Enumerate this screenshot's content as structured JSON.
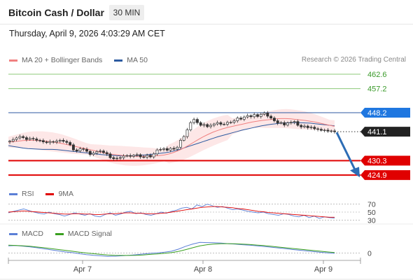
{
  "header": {
    "title": "Bitcoin Cash / Dollar",
    "timeframe": "30 MIN",
    "datetime": "Thursday, April 9, 2026 4:03:29 AM CET"
  },
  "legends": {
    "main": [
      {
        "label": "MA 20 + Bollinger Bands",
        "color": "#f08080"
      },
      {
        "label": "MA 50",
        "color": "#2c5aa0"
      }
    ],
    "rsi": [
      {
        "label": "RSI",
        "color": "#5b7fd6"
      },
      {
        "label": "9MA",
        "color": "#e00000"
      }
    ],
    "macd": [
      {
        "label": "MACD",
        "color": "#5b7fd6"
      },
      {
        "label": "MACD Signal",
        "color": "#3aa020"
      }
    ]
  },
  "credit": "Research © 2026 Trading Central",
  "colors": {
    "resistance": "#8cc878",
    "pivot": "#2c5aa0",
    "support": "#e00000",
    "tag_pivot": "#1f77e0",
    "tag_current": "#222222",
    "tag_support": "#e00000",
    "arrow": "#2d6db5",
    "candle_up": "#2ca02c",
    "candle_down": "#d62728"
  },
  "chart_data": {
    "type": "candlestick",
    "timeframe": "30 MIN",
    "x_ticks": [
      "Apr 7",
      "Apr 8",
      "Apr 9"
    ],
    "ylim": [
      421,
      466
    ],
    "levels": [
      {
        "value": 462.6,
        "label": "462.6",
        "kind": "resistance"
      },
      {
        "value": 457.2,
        "label": "457.2",
        "kind": "resistance"
      },
      {
        "value": 448.2,
        "label": "448.2",
        "kind": "pivot"
      },
      {
        "value": 441.1,
        "label": "441.1",
        "kind": "current"
      },
      {
        "value": 430.3,
        "label": "430.3",
        "kind": "support"
      },
      {
        "value": 424.9,
        "label": "424.9",
        "kind": "support"
      }
    ],
    "close": [
      437.6,
      438.2,
      438.8,
      439.3,
      438.9,
      438.2,
      438.6,
      438.4,
      437.9,
      437.8,
      437.3,
      437.0,
      437.4,
      437.2,
      437.6,
      437.9,
      437.5,
      437.1,
      436.2,
      434.3,
      433.9,
      434.7,
      434.5,
      433.8,
      432.6,
      433.1,
      433.7,
      433.9,
      433.3,
      432.8,
      431.4,
      431.0,
      431.2,
      431.4,
      432.0,
      432.2,
      431.9,
      432.3,
      432.5,
      431.7,
      431.6,
      432.3,
      431.7,
      432.8,
      434.3,
      434.5,
      434.8,
      434.2,
      434.9,
      434.6,
      435.3,
      437.9,
      439.3,
      441.8,
      444.5,
      445.7,
      444.5,
      443.5,
      443.8,
      443.0,
      443.5,
      444.0,
      444.5,
      443.9,
      443.9,
      444.6,
      444.6,
      445.2,
      446.2,
      445.8,
      446.6,
      447.1,
      446.7,
      447.5,
      446.8,
      447.6,
      448.1,
      446.9,
      446.2,
      445.2,
      444.3,
      444.5,
      443.6,
      444.4,
      444.6,
      444.9,
      443.5,
      442.9,
      443.2,
      442.6,
      442.8,
      442.2,
      442.0,
      441.6,
      441.7,
      441.3,
      441.4,
      441.1
    ],
    "ma20": [
      437.2,
      437.4,
      437.6,
      437.8,
      437.9,
      437.9,
      437.8,
      437.7,
      437.5,
      437.3,
      437.0,
      436.7,
      436.3,
      435.9,
      435.5,
      435.1,
      434.7,
      434.3,
      433.9,
      433.5,
      433.1,
      432.7,
      432.5,
      432.3,
      432.1,
      432.0,
      431.9,
      431.9,
      431.9,
      432.0,
      432.1,
      432.2,
      432.4,
      432.8,
      433.4,
      434.1,
      435.0,
      436.0,
      437.1,
      438.2,
      439.2,
      440.1,
      440.9,
      441.6,
      442.2,
      442.7,
      443.1,
      443.5,
      443.9,
      444.3,
      444.7,
      445.0,
      445.3,
      445.5,
      445.7,
      445.9,
      446.0,
      446.0,
      445.9,
      445.7,
      445.5,
      445.3,
      445.0,
      444.7,
      444.3,
      443.9,
      443.5,
      443.1
    ],
    "ma50": [
      435.9,
      435.6,
      435.3,
      435.0,
      434.8,
      434.7,
      434.6,
      434.5,
      434.5,
      434.5,
      434.4,
      434.2,
      434.0,
      433.8,
      433.6,
      433.4,
      433.2,
      433.0,
      432.8,
      432.6,
      432.4,
      432.3,
      432.2,
      432.1,
      432.1,
      432.1,
      432.2,
      432.3,
      432.4,
      432.6,
      432.8,
      433.0,
      433.2,
      433.5,
      433.9,
      434.4,
      435.0,
      435.6,
      436.2,
      436.8,
      437.4,
      438.0,
      438.6,
      439.2,
      439.7,
      440.2,
      440.7,
      441.2,
      441.7,
      442.1,
      442.5,
      442.9,
      443.3,
      443.6,
      443.9,
      444.1,
      444.3,
      444.4,
      444.5,
      444.5,
      444.5,
      444.4,
      444.3,
      444.1,
      443.9,
      443.7,
      443.5,
      443.3
    ],
    "rsi": {
      "ticks": [
        70,
        50,
        30
      ],
      "ylim": [
        27,
        73
      ],
      "rsi": [
        48,
        52,
        55,
        58,
        54,
        50,
        47,
        45,
        50,
        46,
        44,
        40,
        44,
        48,
        45,
        42,
        46,
        40,
        38,
        44,
        48,
        42,
        45,
        50,
        52,
        46,
        48,
        44,
        42,
        46,
        50,
        47,
        52,
        55,
        60,
        62,
        58,
        68,
        64,
        70,
        66,
        62,
        64,
        60,
        56,
        58,
        55,
        52,
        50,
        48,
        50,
        46,
        44,
        42,
        46,
        44,
        40,
        38,
        42,
        36,
        40,
        34,
        38,
        36,
        35
      ],
      "ma9": [
        50,
        51,
        52,
        53,
        52,
        51,
        50,
        49,
        48,
        47,
        46,
        45,
        45,
        46,
        46,
        45,
        45,
        44,
        44,
        45,
        46,
        46,
        47,
        48,
        48,
        47,
        47,
        46,
        46,
        46,
        47,
        48,
        50,
        52,
        54,
        56,
        58,
        60,
        62,
        63,
        64,
        64,
        63,
        62,
        61,
        59,
        58,
        56,
        54,
        52,
        51,
        49,
        48,
        47,
        46,
        45,
        44,
        43,
        42,
        41,
        40,
        39,
        38,
        37,
        37
      ]
    },
    "macd": {
      "ticks": [
        0
      ],
      "ylim": [
        -4.2,
        8.5
      ],
      "macd": [
        4.0,
        4.2,
        3.9,
        3.5,
        3.0,
        2.4,
        1.8,
        1.2,
        0.6,
        0.2,
        -0.4,
        -0.9,
        -1.3,
        -1.6,
        -1.9,
        -1.8,
        -1.6,
        -1.3,
        -1.0,
        -0.6,
        -0.2,
        0.1,
        0.5,
        1.0,
        2.2,
        3.8,
        5.1,
        6.0,
        5.9,
        5.8,
        5.6,
        5.3,
        5.0,
        4.7,
        4.4,
        4.1,
        3.7,
        3.3,
        2.9,
        2.5,
        2.0,
        1.6,
        1.2,
        0.8,
        0.4,
        0.1,
        -0.2
      ],
      "signal": [
        4.4,
        4.3,
        4.1,
        3.8,
        3.4,
        3.0,
        2.5,
        2.0,
        1.5,
        1.0,
        0.5,
        0.0,
        -0.4,
        -0.8,
        -1.1,
        -1.3,
        -1.4,
        -1.4,
        -1.3,
        -1.1,
        -0.8,
        -0.5,
        -0.2,
        0.2,
        0.9,
        1.9,
        3.0,
        4.0,
        4.7,
        5.1,
        5.3,
        5.3,
        5.2,
        5.0,
        4.8,
        4.5,
        4.2,
        3.8,
        3.4,
        3.0,
        2.6,
        2.2,
        1.8,
        1.4,
        1.0,
        0.6,
        0.3
      ]
    }
  }
}
